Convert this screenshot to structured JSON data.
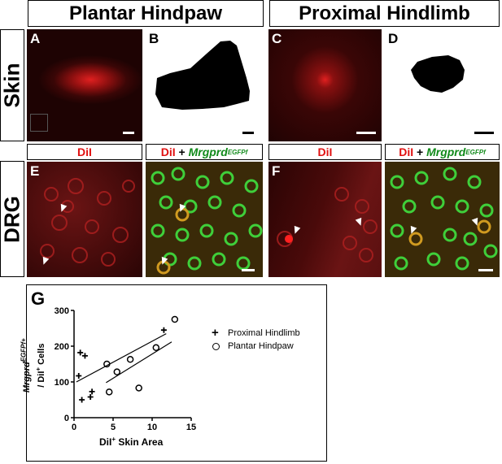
{
  "headers": {
    "plantar": "Plantar Hindpaw",
    "proximal": "Proximal Hindlimb"
  },
  "row_labels": {
    "skin": "Skin",
    "drg": "DRG"
  },
  "panel_letters": {
    "a": "A",
    "b": "B",
    "c": "C",
    "d": "D",
    "e": "E",
    "f": "F",
    "g": "G"
  },
  "stain_labels": {
    "dil": "DiI",
    "dil_prefix": "DiI",
    "plus": " + ",
    "mrgprd": "Mrgprd",
    "mrgprd_sup": "EGFPf"
  },
  "colors": {
    "dil_red": "#e01010",
    "egfp_green": "#118a1a"
  },
  "chart_data": {
    "type": "scatter",
    "title": "",
    "xlabel_main": "DiI",
    "xlabel_sup": "+",
    "xlabel_rest": " Skin Area",
    "ylabel_line1_main": "Mrgprd",
    "ylabel_line1_sup": "EGFPf+",
    "ylabel_line2_pre": "/ DiI",
    "ylabel_line2_sup": "+",
    "ylabel_line2_post": " Cells",
    "xlim": [
      0,
      15
    ],
    "ylim": [
      0,
      300
    ],
    "xticks": [
      "0",
      "5",
      "10",
      "15"
    ],
    "yticks": [
      "0",
      "100",
      "200",
      "300"
    ],
    "legend_position": "right",
    "series": [
      {
        "name": "Proximal Hindlimb",
        "marker": "plus",
        "points": [
          [
            0.6,
            117
          ],
          [
            0.8,
            182
          ],
          [
            1.4,
            173
          ],
          [
            1.0,
            50
          ],
          [
            2.1,
            58
          ],
          [
            2.3,
            73
          ],
          [
            11.5,
            245
          ]
        ],
        "fit": [
          [
            0.3,
            100
          ],
          [
            11.8,
            235
          ]
        ]
      },
      {
        "name": "Plantar Hindpaw",
        "marker": "circle",
        "points": [
          [
            4.2,
            150
          ],
          [
            4.5,
            72
          ],
          [
            5.5,
            128
          ],
          [
            7.2,
            163
          ],
          [
            8.3,
            83
          ],
          [
            10.5,
            196
          ],
          [
            12.9,
            275
          ]
        ],
        "fit": [
          [
            4.1,
            98
          ],
          [
            12.5,
            212
          ]
        ]
      }
    ]
  }
}
